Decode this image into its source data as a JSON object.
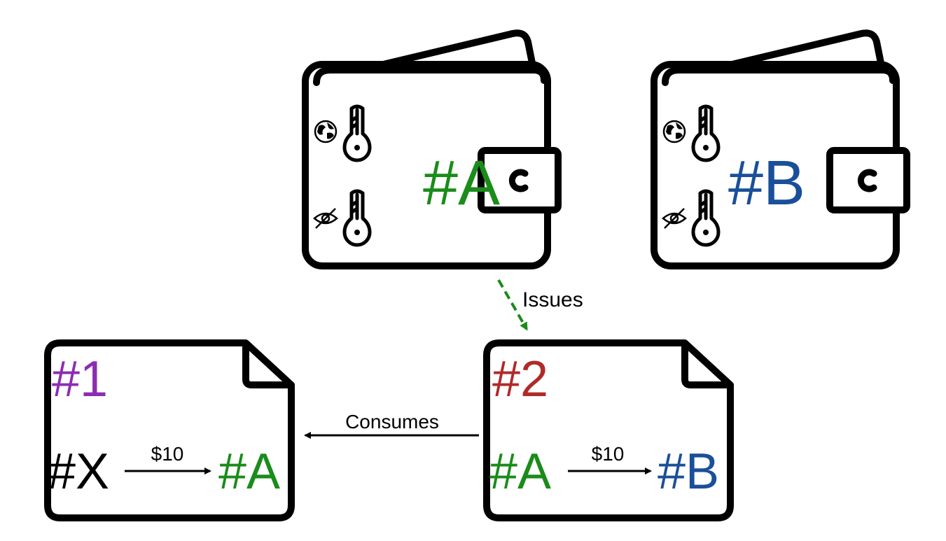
{
  "wallets": [
    {
      "id": "wallet-a",
      "label": "#A",
      "color": "#1a8c1a"
    },
    {
      "id": "wallet-b",
      "label": "#B",
      "color": "#1a4f99"
    }
  ],
  "notes": [
    {
      "id": "note-1",
      "number": "#1",
      "number_color": "#8c2db0",
      "from": "#X",
      "from_color": "#000000",
      "amount": "$10",
      "to": "#A",
      "to_color": "#1a8c1a"
    },
    {
      "id": "note-2",
      "number": "#2",
      "number_color": "#b02a2a",
      "from": "#A",
      "from_color": "#1a8c1a",
      "amount": "$10",
      "to": "#B",
      "to_color": "#1a4f99"
    }
  ],
  "edges": {
    "issues_label": "Issues",
    "issues_color": "#1a8c1a",
    "consumes_label": "Consumes"
  },
  "icons": {
    "public_key": "globe-icon",
    "private_key": "eye-slash-icon",
    "key": "key-icon"
  }
}
